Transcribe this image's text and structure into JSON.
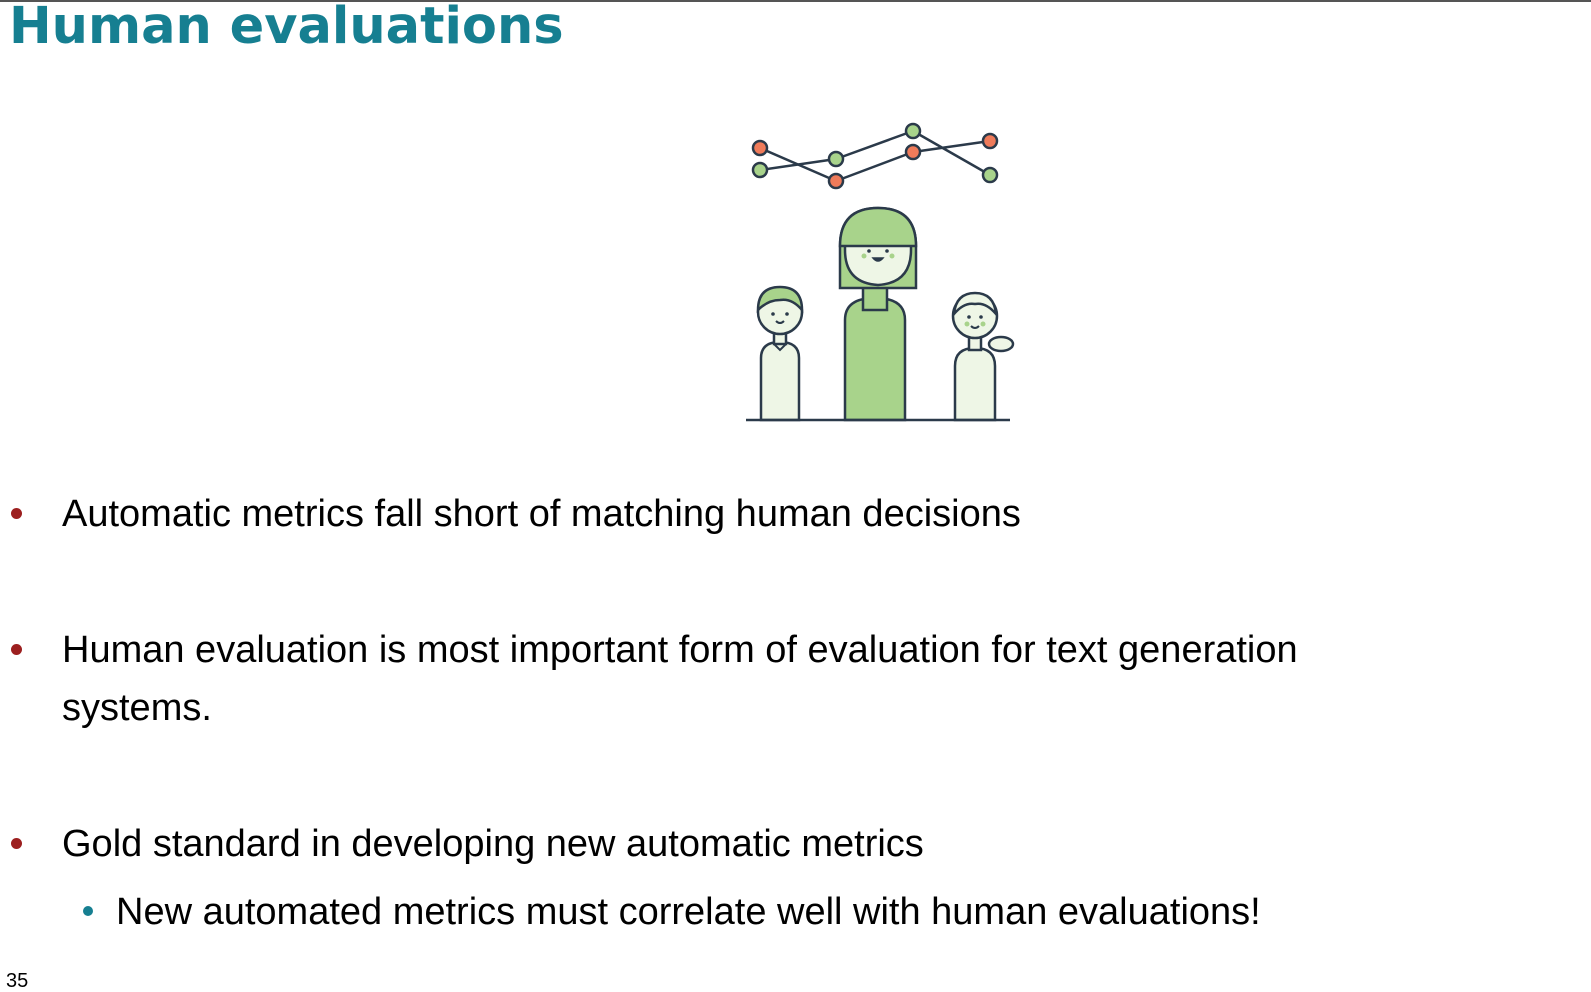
{
  "slide": {
    "title": "Human evaluations",
    "page_number": "35"
  },
  "illustration": {
    "icon": "people-with-line-chart-illustration",
    "colors": {
      "outline": "#2b3a4a",
      "green": "#a8d38b",
      "light_green": "#eef6e6",
      "orange": "#ef7b5a"
    }
  },
  "bullets": [
    {
      "text": "Automatic metrics fall short of matching human decisions"
    },
    {
      "text_line1": "Human evaluation is most important form of evaluation for text generation",
      "text_line2": "systems."
    },
    {
      "text": "Gold standard in developing new automatic metrics"
    }
  ],
  "sub_bullets": [
    {
      "text": "New automated metrics must correlate well with human evaluations!"
    }
  ],
  "colors": {
    "title": "#167f91",
    "bullet_level1": "#9c1f1f",
    "bullet_level2": "#167f91"
  }
}
